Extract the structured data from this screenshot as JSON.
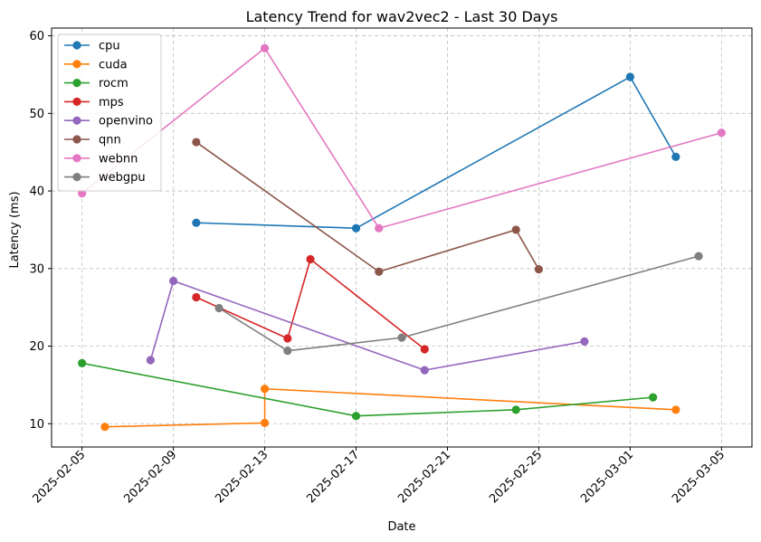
{
  "chart_data": {
    "type": "line",
    "title": "Latency Trend for wav2vec2 - Last 30 Days",
    "xlabel": "Date",
    "ylabel": "Latency (ms)",
    "xlim": [
      "2025-02-03T16:00",
      "2025-03-06T08:00"
    ],
    "ylim": [
      7,
      61
    ],
    "xticks": [
      "2025-02-05",
      "2025-02-09",
      "2025-02-13",
      "2025-02-17",
      "2025-02-21",
      "2025-02-25",
      "2025-03-01",
      "2025-03-05"
    ],
    "yticks": [
      10,
      20,
      30,
      40,
      50,
      60
    ],
    "grid": true,
    "legend_position": "top-left",
    "series": [
      {
        "name": "cpu",
        "color": "#1f77b4",
        "points": [
          [
            "2025-02-10",
            35.9
          ],
          [
            "2025-02-17",
            35.2
          ],
          [
            "2025-03-01",
            54.7
          ],
          [
            "2025-03-03",
            44.4
          ]
        ]
      },
      {
        "name": "cuda",
        "color": "#ff7f0e",
        "points": [
          [
            "2025-02-06",
            9.6
          ],
          [
            "2025-02-13",
            10.1
          ],
          [
            "2025-02-13",
            14.5
          ],
          [
            "2025-03-03",
            11.8
          ]
        ]
      },
      {
        "name": "rocm",
        "color": "#2ca02c",
        "points": [
          [
            "2025-02-05",
            17.8
          ],
          [
            "2025-02-17",
            11.0
          ],
          [
            "2025-02-24",
            11.8
          ],
          [
            "2025-03-02",
            13.4
          ]
        ]
      },
      {
        "name": "mps",
        "color": "#d62728",
        "points": [
          [
            "2025-02-10",
            26.3
          ],
          [
            "2025-02-14",
            21.0
          ],
          [
            "2025-02-15",
            31.2
          ],
          [
            "2025-02-20",
            19.6
          ]
        ]
      },
      {
        "name": "openvino",
        "color": "#9467bd",
        "points": [
          [
            "2025-02-08",
            18.2
          ],
          [
            "2025-02-09",
            28.4
          ],
          [
            "2025-02-20",
            16.9
          ],
          [
            "2025-02-27",
            20.6
          ]
        ]
      },
      {
        "name": "qnn",
        "color": "#8c564b",
        "points": [
          [
            "2025-02-10",
            46.3
          ],
          [
            "2025-02-18",
            29.6
          ],
          [
            "2025-02-24",
            35.0
          ],
          [
            "2025-02-25",
            29.9
          ]
        ]
      },
      {
        "name": "webnn",
        "color": "#e377c2",
        "points": [
          [
            "2025-02-05",
            39.7
          ],
          [
            "2025-02-13",
            58.4
          ],
          [
            "2025-02-18",
            35.2
          ],
          [
            "2025-03-05",
            47.5
          ]
        ]
      },
      {
        "name": "webgpu",
        "color": "#7f7f7f",
        "points": [
          [
            "2025-02-11",
            24.9
          ],
          [
            "2025-02-14",
            19.4
          ],
          [
            "2025-02-19",
            21.1
          ],
          [
            "2025-03-04",
            31.6
          ]
        ]
      }
    ]
  }
}
